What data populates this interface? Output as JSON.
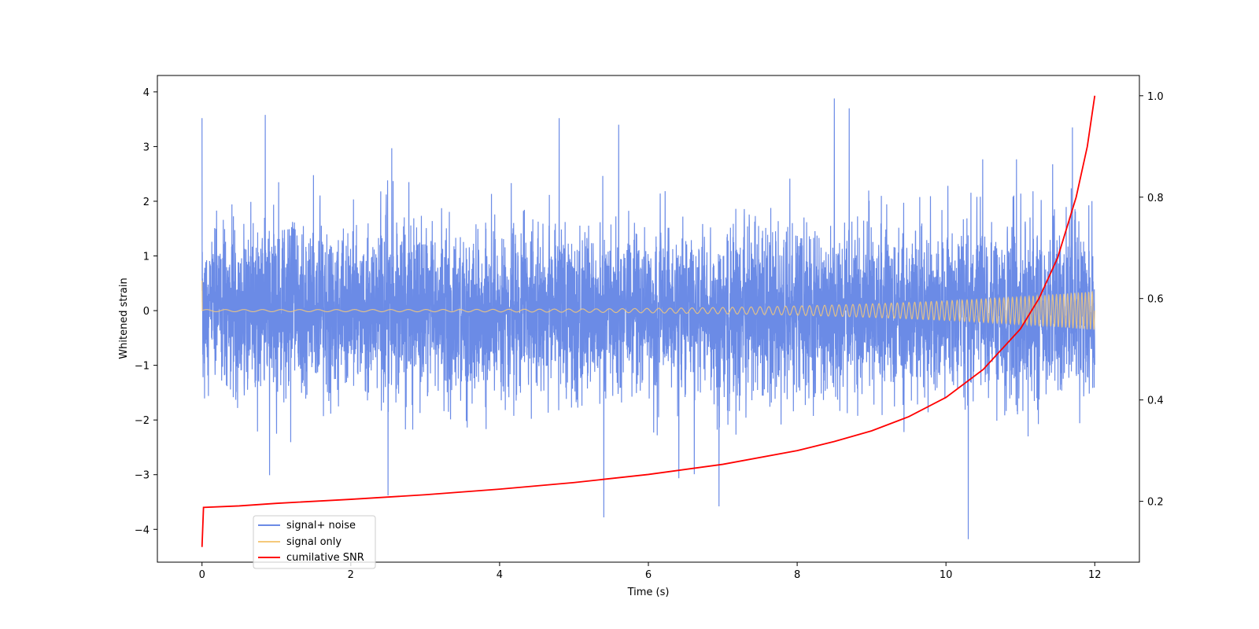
{
  "chart_data": {
    "type": "line",
    "title": "",
    "xlabel": "Time (s)",
    "ylabel": "Whitened strain",
    "y2label": "",
    "xlim": [
      -0.6,
      12.6
    ],
    "ylim": [
      -4.6,
      4.3
    ],
    "y2lim": [
      0.08,
      1.04
    ],
    "x_ticks": [
      0,
      2,
      4,
      6,
      8,
      10,
      12
    ],
    "y_ticks": [
      -4,
      -3,
      -2,
      -1,
      0,
      1,
      2,
      3,
      4
    ],
    "y2_ticks": [
      0.2,
      0.4,
      0.6,
      0.8,
      1.0
    ],
    "x_tick_labels": [
      "0",
      "2",
      "4",
      "6",
      "8",
      "10",
      "12"
    ],
    "y_tick_labels": [
      "−4",
      "−3",
      "−2",
      "−1",
      "0",
      "1",
      "2",
      "3",
      "4"
    ],
    "y2_tick_labels": [
      "0.2",
      "0.4",
      "0.6",
      "0.8",
      "1.0"
    ],
    "grid": false,
    "legend_position": "lower-left",
    "series": [
      {
        "name": "signal+ noise",
        "axis": "left",
        "color": "#6b8be6",
        "time_range": [
          0,
          12
        ],
        "noise_std": 0.75,
        "min": -4.18,
        "max": 3.88,
        "peaks": [
          [
            0.0,
            3.52
          ],
          [
            0.85,
            3.58
          ],
          [
            2.55,
            2.97
          ],
          [
            4.8,
            3.52
          ],
          [
            5.6,
            3.4
          ],
          [
            8.5,
            3.88
          ],
          [
            8.7,
            3.7
          ],
          [
            11.7,
            3.35
          ],
          [
            5.4,
            -3.78
          ],
          [
            6.95,
            -3.58
          ],
          [
            10.3,
            -4.18
          ],
          [
            2.5,
            -3.38
          ]
        ]
      },
      {
        "name": "signal only",
        "axis": "left",
        "color": "#f5c97a",
        "time_range": [
          0,
          12
        ],
        "initial_value": 0.55,
        "start_amplitude": 0.02,
        "end_amplitude": 0.35,
        "start_frequency_hz": 4,
        "end_frequency_hz": 22
      },
      {
        "name": "cumilative SNR",
        "axis": "right",
        "color": "#ff0000",
        "x": [
          0,
          0.02,
          0.5,
          1,
          2,
          3,
          4,
          5,
          6,
          7,
          8,
          8.5,
          9,
          9.5,
          10,
          10.5,
          11,
          11.25,
          11.5,
          11.75,
          11.9,
          12.0
        ],
        "values": [
          0.11,
          0.188,
          0.191,
          0.196,
          0.204,
          0.213,
          0.224,
          0.237,
          0.253,
          0.273,
          0.3,
          0.318,
          0.339,
          0.367,
          0.405,
          0.46,
          0.54,
          0.6,
          0.68,
          0.8,
          0.9,
          1.0
        ]
      }
    ]
  }
}
